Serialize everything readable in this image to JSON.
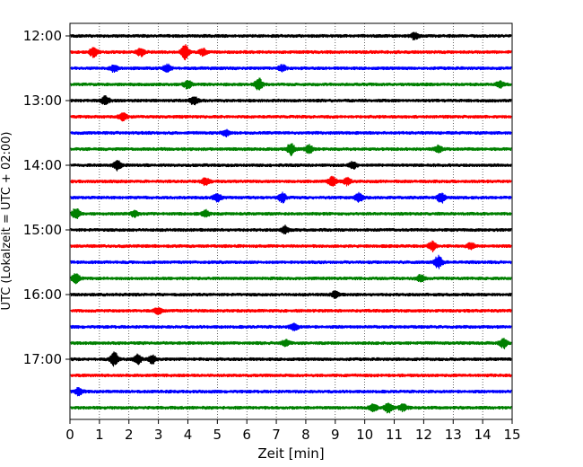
{
  "chart_data": {
    "type": "line",
    "xlabel": "Zeit  [min]",
    "ylabel": "UTC (Lokalzeit = UTC + 02:00)",
    "xlim": [
      0,
      15
    ],
    "x_ticks": [
      0,
      1,
      2,
      3,
      4,
      5,
      6,
      7,
      8,
      9,
      10,
      11,
      12,
      13,
      14,
      15
    ],
    "y_tick_labels": [
      "12:00",
      "13:00",
      "14:00",
      "15:00",
      "16:00",
      "17:00"
    ],
    "y_tick_trace_index": [
      0,
      4,
      8,
      12,
      16,
      20
    ],
    "grid": "vertical-dotted",
    "trace_minutes": 15,
    "colors": [
      "#000000",
      "#ff0000",
      "#0000ff",
      "#008000"
    ],
    "traces": [
      {
        "start": "12:00",
        "color": "#000000",
        "bursts": [
          {
            "x": 11.7,
            "amp": 1.6
          }
        ]
      },
      {
        "start": "12:15",
        "color": "#ff0000",
        "bursts": [
          {
            "x": 0.8,
            "amp": 2.2
          },
          {
            "x": 2.4,
            "amp": 1.6
          },
          {
            "x": 3.9,
            "amp": 3.2
          },
          {
            "x": 4.5,
            "amp": 1.5
          }
        ]
      },
      {
        "start": "12:30",
        "color": "#0000ff",
        "bursts": [
          {
            "x": 1.5,
            "amp": 1.5
          },
          {
            "x": 3.3,
            "amp": 1.7
          },
          {
            "x": 7.2,
            "amp": 1.5
          }
        ]
      },
      {
        "start": "12:45",
        "color": "#008000",
        "bursts": [
          {
            "x": 4.0,
            "amp": 2.0
          },
          {
            "x": 6.4,
            "amp": 2.6
          },
          {
            "x": 14.6,
            "amp": 1.5
          }
        ]
      },
      {
        "start": "13:00",
        "color": "#000000",
        "bursts": [
          {
            "x": 1.2,
            "amp": 2.0
          },
          {
            "x": 4.2,
            "amp": 1.8
          }
        ]
      },
      {
        "start": "13:15",
        "color": "#ff0000",
        "bursts": [
          {
            "x": 1.8,
            "amp": 1.6
          }
        ]
      },
      {
        "start": "13:30",
        "color": "#0000ff",
        "bursts": [
          {
            "x": 5.3,
            "amp": 1.4
          }
        ]
      },
      {
        "start": "13:45",
        "color": "#008000",
        "bursts": [
          {
            "x": 7.5,
            "amp": 2.6
          },
          {
            "x": 8.1,
            "amp": 2.0
          },
          {
            "x": 12.5,
            "amp": 1.5
          }
        ]
      },
      {
        "start": "14:00",
        "color": "#000000",
        "bursts": [
          {
            "x": 1.6,
            "amp": 2.2
          },
          {
            "x": 9.6,
            "amp": 1.5
          }
        ]
      },
      {
        "start": "14:15",
        "color": "#ff0000",
        "bursts": [
          {
            "x": 4.6,
            "amp": 1.5
          },
          {
            "x": 8.9,
            "amp": 2.2
          },
          {
            "x": 9.4,
            "amp": 1.6
          }
        ]
      },
      {
        "start": "14:30",
        "color": "#0000ff",
        "bursts": [
          {
            "x": 5.0,
            "amp": 1.8
          },
          {
            "x": 7.2,
            "amp": 2.2
          },
          {
            "x": 9.8,
            "amp": 2.0
          },
          {
            "x": 12.6,
            "amp": 2.2
          }
        ]
      },
      {
        "start": "14:45",
        "color": "#008000",
        "bursts": [
          {
            "x": 0.2,
            "amp": 2.4
          },
          {
            "x": 2.2,
            "amp": 1.5
          },
          {
            "x": 4.6,
            "amp": 1.5
          }
        ]
      },
      {
        "start": "15:00",
        "color": "#000000",
        "bursts": [
          {
            "x": 7.3,
            "amp": 1.6
          }
        ]
      },
      {
        "start": "15:15",
        "color": "#ff0000",
        "bursts": [
          {
            "x": 12.3,
            "amp": 2.2
          },
          {
            "x": 13.6,
            "amp": 1.5
          }
        ]
      },
      {
        "start": "15:30",
        "color": "#0000ff",
        "bursts": [
          {
            "x": 12.5,
            "amp": 3.0
          }
        ]
      },
      {
        "start": "15:45",
        "color": "#008000",
        "bursts": [
          {
            "x": 0.2,
            "amp": 2.2
          },
          {
            "x": 11.9,
            "amp": 1.6
          }
        ]
      },
      {
        "start": "16:00",
        "color": "#000000",
        "bursts": [
          {
            "x": 9.0,
            "amp": 1.6
          }
        ]
      },
      {
        "start": "16:15",
        "color": "#ff0000",
        "bursts": [
          {
            "x": 3.0,
            "amp": 1.4
          }
        ]
      },
      {
        "start": "16:30",
        "color": "#0000ff",
        "bursts": [
          {
            "x": 7.6,
            "amp": 1.6
          }
        ]
      },
      {
        "start": "16:45",
        "color": "#008000",
        "bursts": [
          {
            "x": 7.3,
            "amp": 1.5
          },
          {
            "x": 14.7,
            "amp": 2.2
          }
        ]
      },
      {
        "start": "17:00",
        "color": "#000000",
        "bursts": [
          {
            "x": 1.5,
            "amp": 3.0
          },
          {
            "x": 2.3,
            "amp": 2.0
          },
          {
            "x": 2.8,
            "amp": 1.8
          }
        ]
      },
      {
        "start": "17:15",
        "color": "#ff0000",
        "bursts": []
      },
      {
        "start": "17:30",
        "color": "#0000ff",
        "bursts": [
          {
            "x": 0.3,
            "amp": 1.6
          }
        ]
      },
      {
        "start": "17:45",
        "color": "#008000",
        "bursts": [
          {
            "x": 10.3,
            "amp": 1.8
          },
          {
            "x": 10.8,
            "amp": 2.4
          },
          {
            "x": 11.3,
            "amp": 1.6
          }
        ]
      }
    ]
  }
}
